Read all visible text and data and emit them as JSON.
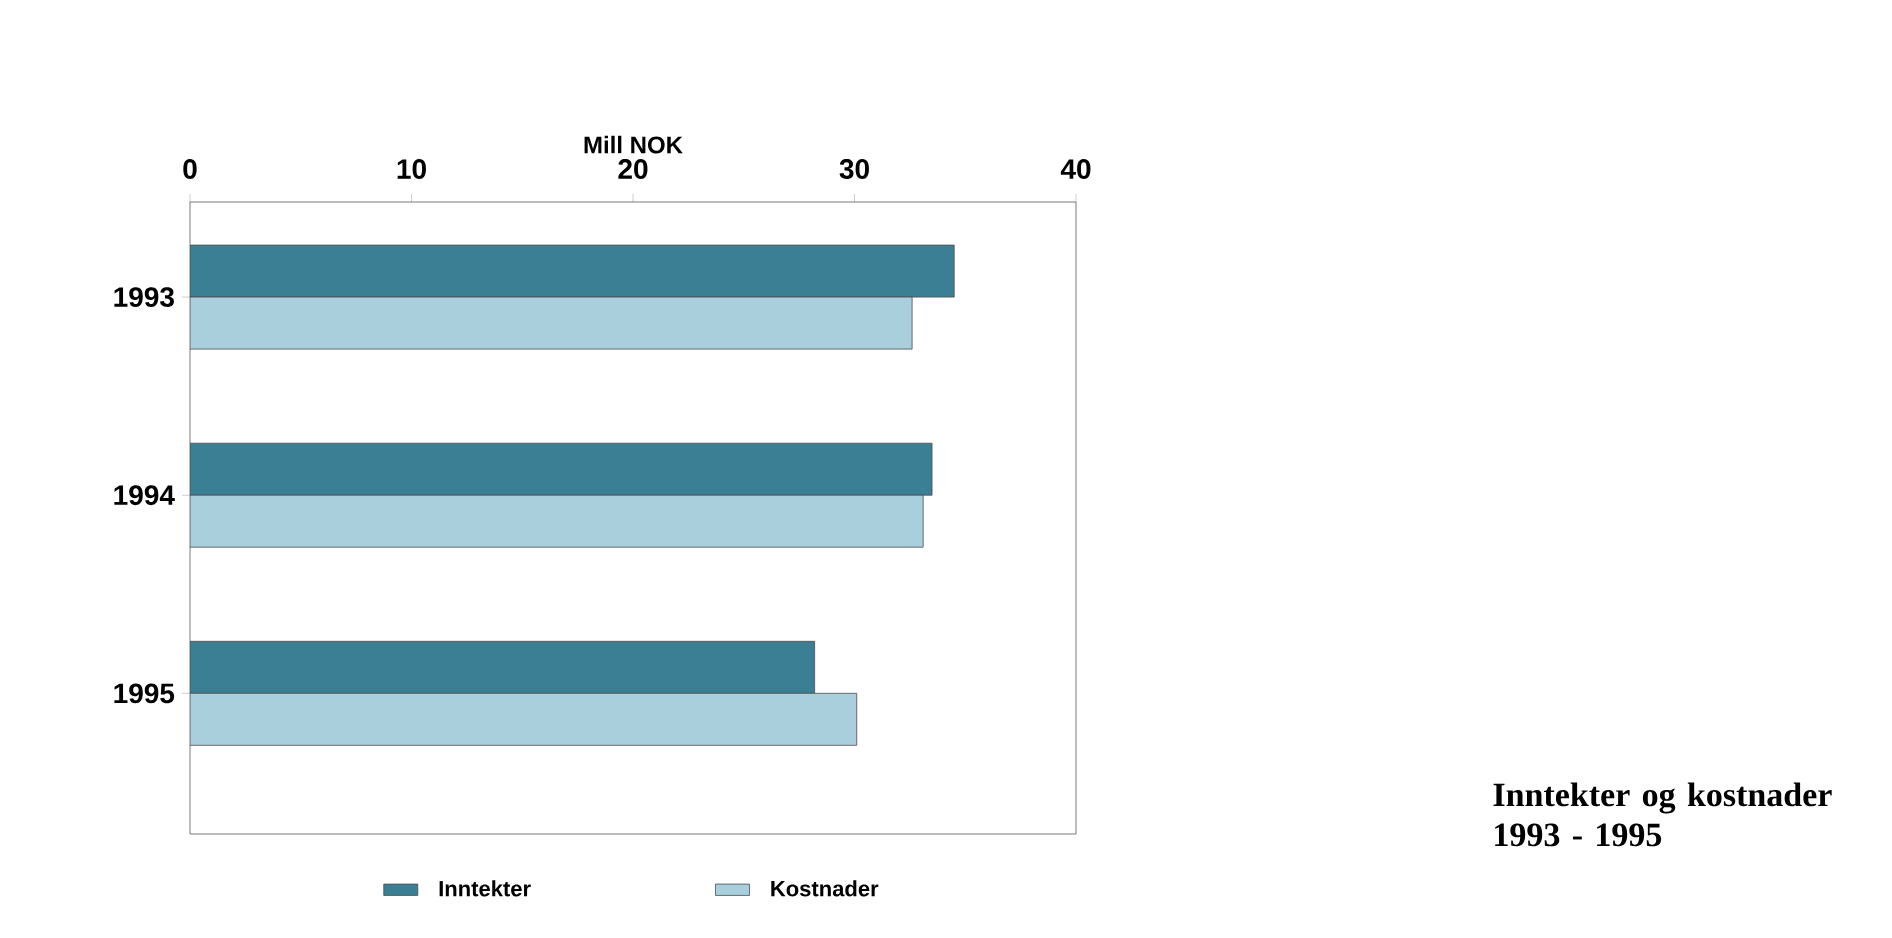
{
  "chart_data": {
    "type": "bar",
    "orientation": "horizontal",
    "title": "Inntekter og kostnader 1993 - 1995",
    "xlabel": "Mill NOK",
    "categories": [
      "1993",
      "1994",
      "1995"
    ],
    "series": [
      {
        "name": "Inntekter",
        "color": "#3a7f93",
        "values": [
          34.5,
          33.5,
          28.2
        ]
      },
      {
        "name": "Kostnader",
        "color": "#a9cfdc",
        "values": [
          32.6,
          33.1,
          30.1
        ]
      }
    ],
    "xlim": [
      0,
      40
    ],
    "xticks": [
      0,
      10,
      20,
      30,
      40
    ],
    "grid": false,
    "legend": "bottom"
  }
}
